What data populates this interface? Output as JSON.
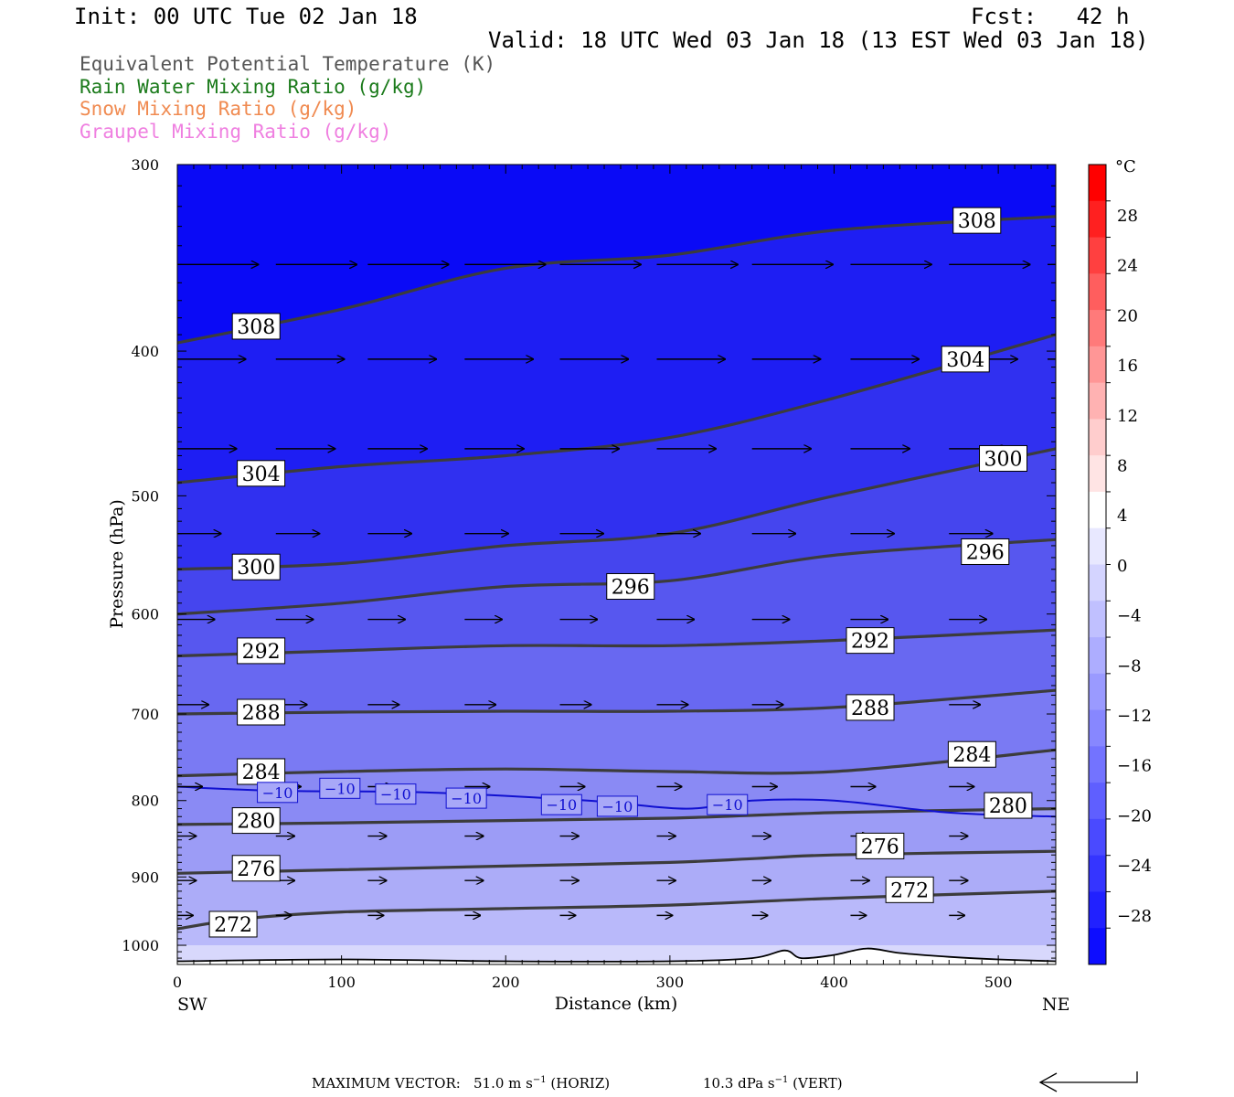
{
  "header": {
    "init": "Init: 00 UTC Tue 02 Jan 18",
    "fcst": "Fcst:   42 h",
    "valid": "Valid: 18 UTC Wed 03 Jan 18 (13 EST Wed 03 Jan 18)"
  },
  "variables": [
    {
      "label": "Equivalent Potential Temperature (K)",
      "color": "#555555"
    },
    {
      "label": "Rain Water Mixing Ratio (g/kg)",
      "color": "#1a7a1a"
    },
    {
      "label": "Snow Mixing Ratio (g/kg)",
      "color": "#f08a50"
    },
    {
      "label": "Graupel Mixing Ratio (g/kg)",
      "color": "#ef7fe0"
    }
  ],
  "chart_data": {
    "type": "cross-section",
    "xlabel": "Distance (km)",
    "ylabel": "Pressure (hPa)",
    "xlim": [
      0,
      535
    ],
    "ylim": [
      1030,
      300
    ],
    "y_log_scale": true,
    "x_ticks": [
      "0",
      "100",
      "200",
      "300",
      "400",
      "500"
    ],
    "y_ticks": [
      "300",
      "400",
      "500",
      "600",
      "700",
      "800",
      "900",
      "1000"
    ],
    "x_ends": {
      "left": "SW",
      "right": "NE"
    },
    "colorbar": {
      "unit": "°C",
      "labels": [
        "28",
        "24",
        "20",
        "16",
        "12",
        "8",
        "4",
        "0",
        "−4",
        "−8",
        "−12",
        "−16",
        "−20",
        "−24",
        "−28"
      ],
      "colors": [
        "#ff0000",
        "#ff2020",
        "#ff4040",
        "#ff5e5e",
        "#ff7a7a",
        "#ff9696",
        "#ffb2b2",
        "#ffcdcd",
        "#ffe4e4",
        "#ffffff",
        "#e8e8ff",
        "#d4d4ff",
        "#c0c0ff",
        "#adadff",
        "#9a9aff",
        "#8787ff",
        "#7373ff",
        "#5f5fff",
        "#4a4aff",
        "#3535ff",
        "#2121ff",
        "#0d0dff"
      ]
    },
    "theta_e_contours": [
      {
        "value": 272,
        "label": "272",
        "points": [
          [
            0,
            975
          ],
          [
            40,
            960
          ],
          [
            100,
            950
          ],
          [
            200,
            945
          ],
          [
            300,
            940
          ],
          [
            400,
            930
          ],
          [
            535,
            920
          ]
        ],
        "label_at": [
          [
            34,
            968
          ],
          [
            446,
            918
          ]
        ]
      },
      {
        "value": 276,
        "label": "276",
        "points": [
          [
            0,
            895
          ],
          [
            100,
            890
          ],
          [
            200,
            885
          ],
          [
            300,
            880
          ],
          [
            350,
            875
          ],
          [
            400,
            870
          ],
          [
            535,
            865
          ]
        ],
        "label_at": [
          [
            48,
            888
          ],
          [
            428,
            858
          ]
        ]
      },
      {
        "value": 280,
        "label": "280",
        "points": [
          [
            0,
            830
          ],
          [
            100,
            828
          ],
          [
            200,
            825
          ],
          [
            300,
            822
          ],
          [
            400,
            815
          ],
          [
            535,
            810
          ]
        ],
        "label_at": [
          [
            48,
            825
          ],
          [
            506,
            806
          ]
        ]
      },
      {
        "value": 284,
        "label": "284",
        "points": [
          [
            0,
            770
          ],
          [
            100,
            765
          ],
          [
            200,
            762
          ],
          [
            300,
            765
          ],
          [
            400,
            765
          ],
          [
            535,
            740
          ]
        ],
        "label_at": [
          [
            51,
            765
          ],
          [
            484,
            745
          ]
        ]
      },
      {
        "value": 288,
        "label": "288",
        "points": [
          [
            0,
            700
          ],
          [
            100,
            698
          ],
          [
            200,
            697
          ],
          [
            300,
            697
          ],
          [
            400,
            693
          ],
          [
            535,
            675
          ]
        ],
        "label_at": [
          [
            51,
            698
          ],
          [
            422,
            693
          ]
        ]
      },
      {
        "value": 292,
        "label": "292",
        "points": [
          [
            0,
            640
          ],
          [
            100,
            635
          ],
          [
            200,
            630
          ],
          [
            300,
            630
          ],
          [
            400,
            625
          ],
          [
            535,
            615
          ]
        ],
        "label_at": [
          [
            51,
            635
          ],
          [
            422,
            625
          ]
        ]
      },
      {
        "value": 296,
        "label": "296",
        "points": [
          [
            0,
            600
          ],
          [
            100,
            590
          ],
          [
            200,
            575
          ],
          [
            300,
            570
          ],
          [
            400,
            548
          ],
          [
            535,
            535
          ]
        ],
        "label_at": [
          [
            276,
            575
          ],
          [
            492,
            545
          ]
        ]
      },
      {
        "value": 300,
        "label": "300",
        "points": [
          [
            0,
            560
          ],
          [
            100,
            555
          ],
          [
            200,
            540
          ],
          [
            300,
            530
          ],
          [
            400,
            500
          ],
          [
            535,
            465
          ]
        ],
        "label_at": [
          [
            48,
            558
          ],
          [
            503,
            472
          ]
        ]
      },
      {
        "value": 304,
        "label": "304",
        "points": [
          [
            0,
            490
          ],
          [
            100,
            478
          ],
          [
            200,
            470
          ],
          [
            300,
            457
          ],
          [
            400,
            430
          ],
          [
            535,
            390
          ]
        ],
        "label_at": [
          [
            51,
            483
          ],
          [
            480,
            405
          ]
        ]
      },
      {
        "value": 308,
        "label": "308",
        "points": [
          [
            0,
            395
          ],
          [
            100,
            375
          ],
          [
            200,
            352
          ],
          [
            300,
            345
          ],
          [
            400,
            332
          ],
          [
            535,
            325
          ]
        ],
        "label_at": [
          [
            48,
            385
          ],
          [
            487,
            327
          ]
        ]
      }
    ],
    "temperature_contours": [
      {
        "value": -10,
        "label": "−10",
        "points": [
          [
            0,
            783
          ],
          [
            60,
            788
          ],
          [
            150,
            790
          ],
          [
            250,
            800
          ],
          [
            310,
            810
          ],
          [
            350,
            800
          ],
          [
            400,
            800
          ],
          [
            470,
            815
          ],
          [
            535,
            820
          ]
        ],
        "label_at": [
          [
            61,
            790
          ],
          [
            99,
            785
          ],
          [
            133,
            792
          ],
          [
            176,
            797
          ],
          [
            234,
            805
          ],
          [
            268,
            807
          ],
          [
            335,
            805
          ]
        ]
      }
    ],
    "vectors": [
      {
        "p": 350,
        "x": [
          0,
          60,
          116,
          175,
          233,
          292,
          350,
          410,
          470,
          530
        ],
        "u": [
          52,
          52,
          52,
          52,
          52,
          52,
          52,
          52,
          52,
          52
        ],
        "v": [
          0,
          0,
          0,
          0,
          0,
          0,
          0,
          0,
          0,
          0
        ]
      },
      {
        "p": 405,
        "x": [
          0,
          60,
          116,
          175,
          233,
          292,
          350,
          410,
          470,
          530
        ],
        "u": [
          44,
          44,
          44,
          44,
          44,
          44,
          44,
          44,
          44,
          44
        ],
        "v": [
          0,
          0,
          0,
          0,
          0,
          0,
          0,
          0,
          0,
          0
        ]
      },
      {
        "p": 465,
        "x": [
          0,
          60,
          116,
          175,
          233,
          292,
          350,
          410,
          470
        ],
        "u": [
          38,
          38,
          38,
          38,
          38,
          38,
          38,
          38,
          38
        ],
        "v": [
          0,
          0,
          0,
          0,
          0,
          0,
          0,
          0,
          0
        ]
      },
      {
        "p": 530,
        "x": [
          0,
          60,
          116,
          175,
          233,
          292,
          350,
          410,
          470
        ],
        "u": [
          28,
          28,
          28,
          28,
          28,
          28,
          28,
          28,
          28
        ],
        "v": [
          0,
          0,
          0,
          0,
          0,
          0,
          0,
          0,
          0
        ]
      },
      {
        "p": 605,
        "x": [
          0,
          60,
          116,
          175,
          233,
          292,
          350,
          410,
          470
        ],
        "u": [
          24,
          24,
          24,
          24,
          24,
          24,
          24,
          24,
          24
        ],
        "v": [
          0,
          0,
          0,
          0,
          0,
          0,
          0,
          0,
          0
        ]
      },
      {
        "p": 690,
        "x": [
          0,
          60,
          116,
          175,
          233,
          292,
          350,
          410,
          470
        ],
        "u": [
          20,
          20,
          20,
          20,
          20,
          20,
          20,
          20,
          20
        ],
        "v": [
          0,
          0,
          0,
          0,
          0,
          0,
          0,
          0,
          0
        ]
      },
      {
        "p": 783,
        "x": [
          0,
          60,
          116,
          175,
          233,
          292,
          350,
          410,
          470
        ],
        "u": [
          16,
          16,
          16,
          16,
          16,
          16,
          16,
          16,
          16
        ],
        "v": [
          0,
          0,
          0,
          0,
          0,
          0,
          0,
          0,
          0
        ]
      },
      {
        "p": 845,
        "x": [
          0,
          60,
          116,
          175,
          233,
          292,
          350,
          410,
          470
        ],
        "u": [
          12,
          12,
          12,
          12,
          12,
          12,
          12,
          12,
          12
        ],
        "v": [
          0,
          0,
          0,
          0,
          0,
          0,
          0,
          0,
          0
        ]
      },
      {
        "p": 905,
        "x": [
          0,
          60,
          116,
          175,
          233,
          292,
          350,
          410,
          470
        ],
        "u": [
          12,
          12,
          12,
          12,
          12,
          12,
          12,
          12,
          12
        ],
        "v": [
          0,
          0,
          0,
          0,
          0,
          0,
          0,
          0,
          0
        ]
      },
      {
        "p": 955,
        "x": [
          0,
          60,
          116,
          175,
          233,
          292,
          350,
          410,
          470
        ],
        "u": [
          10,
          10,
          10,
          10,
          10,
          10,
          10,
          10,
          10
        ],
        "v": [
          0,
          0,
          0,
          0,
          0,
          0,
          0,
          0,
          0
        ]
      }
    ],
    "terrain": [
      [
        0,
        1025
      ],
      [
        100,
        1022
      ],
      [
        200,
        1025
      ],
      [
        300,
        1025
      ],
      [
        350,
        1020
      ],
      [
        370,
        1008
      ],
      [
        380,
        1020
      ],
      [
        400,
        1015
      ],
      [
        420,
        1005
      ],
      [
        440,
        1012
      ],
      [
        470,
        1018
      ],
      [
        500,
        1022
      ],
      [
        535,
        1025
      ]
    ],
    "grid": false
  },
  "footer": {
    "max_vector_label": "MAXIMUM VECTOR:",
    "horiz_value": "51.0 m s",
    "horiz_sup": "−1",
    "horiz_tag": "(HORIZ)",
    "vert_value": "10.3 dPa s",
    "vert_sup": "−1",
    "vert_tag": "(VERT)"
  }
}
